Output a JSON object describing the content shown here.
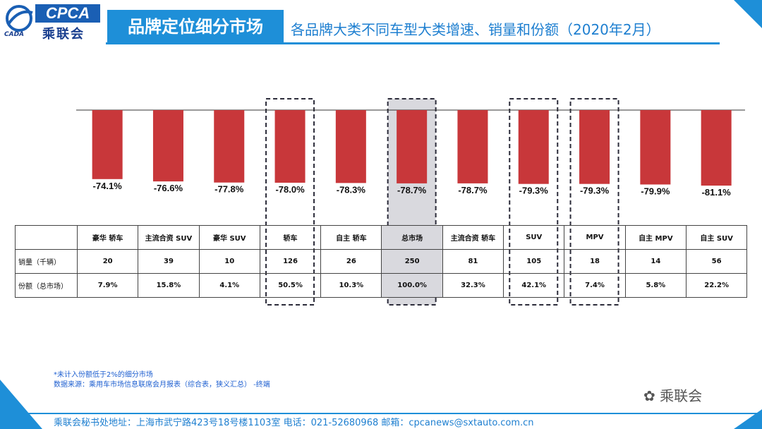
{
  "header": {
    "logo_text": "CPCA",
    "logo_cn": "乘联会",
    "logo_sub": "CADA",
    "section_title": "品牌定位细分市场",
    "subtitle": "各品牌大类不同车型大类增速、销量和份额（2020年2月）"
  },
  "colors": {
    "bar": "#c8373a",
    "accent": "#1e8fd8",
    "highlight": "#d9d9de"
  },
  "chart_data": {
    "type": "bar",
    "title": "各品牌大类不同车型大类增速、销量和份额（2020年2月）",
    "categories": [
      "豪华 轿车",
      "主流合资 SUV",
      "豪华 SUV",
      "轿车",
      "自主 轿车",
      "总市场",
      "主流合资 轿车",
      "SUV",
      "MPV",
      "自主 MPV",
      "自主 SUV"
    ],
    "values": [
      -74.1,
      -76.6,
      -77.8,
      -78.0,
      -78.3,
      -78.7,
      -78.7,
      -79.3,
      -79.3,
      -79.9,
      -81.1
    ],
    "value_labels": [
      "-74.1%",
      "-76.6%",
      "-77.8%",
      "-78.0%",
      "-78.3%",
      "-78.7%",
      "-78.7%",
      "-79.3%",
      "-79.3%",
      "-79.9%",
      "-81.1%"
    ],
    "unit": "%",
    "ylim": [
      -100,
      0
    ],
    "highlighted": [
      "轿车",
      "总市场",
      "SUV",
      "MPV"
    ],
    "shaded": [
      "总市场"
    ]
  },
  "table": {
    "rows": [
      {
        "label": "销量（千辆）",
        "values": [
          "20",
          "39",
          "10",
          "126",
          "26",
          "250",
          "81",
          "105",
          "18",
          "14",
          "56"
        ]
      },
      {
        "label": "份额（总市场）",
        "values": [
          "7.9%",
          "15.8%",
          "4.1%",
          "50.5%",
          "10.3%",
          "100.0%",
          "32.3%",
          "42.1%",
          "7.4%",
          "5.8%",
          "22.2%"
        ]
      }
    ]
  },
  "footnote": {
    "line1": "*未计入份额低于2%的细分市场",
    "line2": "数据来源：乘用车市场信息联席会月报表（综合表，狭义汇总） -终端"
  },
  "footer": {
    "address": "乘联会秘书处地址：上海市武宁路423号18号楼1103室  电话：021-52680968  邮箱：cpcanews@sxtauto.com.cn",
    "watermark": "乘联会"
  }
}
